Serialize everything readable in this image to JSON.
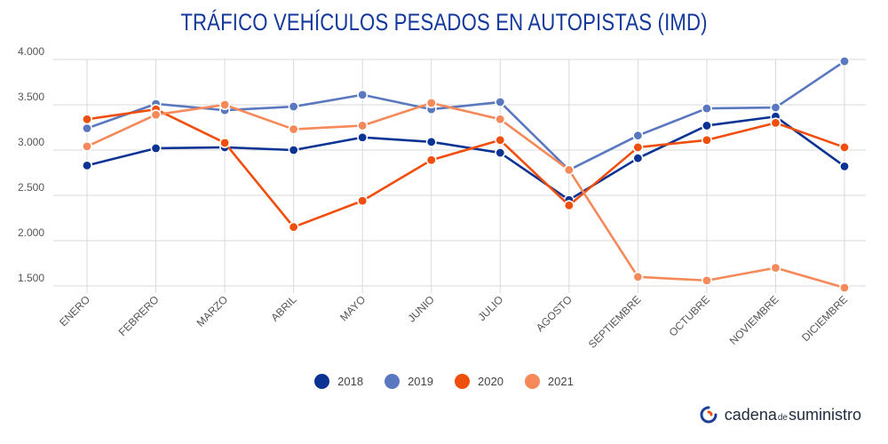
{
  "header": {
    "title": "TRÁFICO VEHÍCULOS PESADOS EN AUTOPISTAS (IMD)"
  },
  "brand": {
    "part1": "cadena",
    "part2": "de",
    "part3": "suministro",
    "icon": "brand-logo-icon"
  },
  "colors": {
    "2018": "#0b3393",
    "2019": "#5a78bf",
    "2020": "#f04e0c",
    "2021": "#f5895a",
    "grid": "#d9d9d9"
  },
  "chart_data": {
    "type": "line",
    "title": "TRÁFICO VEHÍCULOS PESADOS EN AUTOPISTAS (IMD)",
    "xlabel": "",
    "ylabel": "",
    "categories": [
      "ENERO",
      "FEBRERO",
      "MARZO",
      "ABRIL",
      "MAYO",
      "JUNIO",
      "JULIO",
      "AGOSTO",
      "SEPTIEMBRE",
      "OCTUBRE",
      "NOVIEMBRE",
      "DICIEMBRE"
    ],
    "ylim": [
      1500,
      4000
    ],
    "yticks": [
      1500,
      2000,
      2500,
      3000,
      3500,
      4000
    ],
    "ytick_labels": [
      "1.500",
      "2.000",
      "2.500",
      "3.000",
      "3.500",
      "4.000"
    ],
    "grid": true,
    "legend_position": "bottom",
    "series": [
      {
        "name": "2018",
        "color": "#0b3393",
        "values": [
          2830,
          3020,
          3030,
          3000,
          3140,
          3090,
          2970,
          2450,
          2910,
          3270,
          3370,
          2820
        ]
      },
      {
        "name": "2019",
        "color": "#5a78bf",
        "values": [
          3240,
          3510,
          3440,
          3480,
          3610,
          3450,
          3530,
          2780,
          3160,
          3460,
          3470,
          3980
        ]
      },
      {
        "name": "2020",
        "color": "#f04e0c",
        "values": [
          3340,
          3450,
          3080,
          2150,
          2440,
          2890,
          3110,
          2390,
          3030,
          3110,
          3300,
          3030
        ]
      },
      {
        "name": "2021",
        "color": "#f5895a",
        "values": [
          3040,
          3390,
          3500,
          3230,
          3270,
          3520,
          3340,
          2780,
          1600,
          1560,
          1700,
          1480
        ]
      }
    ]
  }
}
